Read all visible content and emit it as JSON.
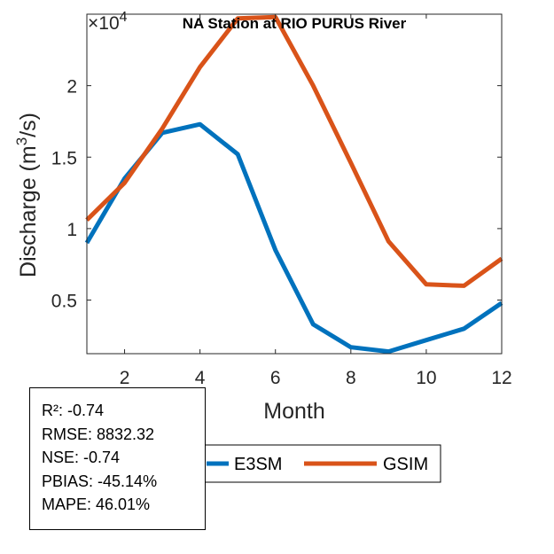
{
  "chart_data": {
    "type": "line",
    "title": "NA  Station at  RIO PURUS  River",
    "xlabel": "Month",
    "ylabel_base": "Discharge (m",
    "ylabel_sup": "3",
    "ylabel_tail": "/s)",
    "y_exponent_base": "×10",
    "y_exponent_power": "4",
    "xlim": [
      1,
      12
    ],
    "ylim": [
      0.125,
      2.5
    ],
    "x_ticks": [
      2,
      4,
      6,
      8,
      10,
      12
    ],
    "x_tick_labels": [
      "2",
      "4",
      "6",
      "8",
      "10",
      "12"
    ],
    "y_ticks": [
      0.5,
      1,
      1.5,
      2
    ],
    "y_tick_labels": [
      "0.5",
      "1",
      "1.5",
      "2"
    ],
    "x": [
      1,
      2,
      3,
      4,
      5,
      6,
      7,
      8,
      9,
      10,
      11,
      12
    ],
    "series": [
      {
        "name": "E3SM",
        "color": "#0072BD",
        "values": [
          0.9,
          1.35,
          1.67,
          1.73,
          1.52,
          0.85,
          0.33,
          0.17,
          0.14,
          0.22,
          0.3,
          0.48
        ]
      },
      {
        "name": "GSIM",
        "color": "#D95319",
        "values": [
          1.06,
          1.32,
          1.7,
          2.13,
          2.47,
          2.48,
          2.0,
          1.46,
          0.91,
          0.61,
          0.6,
          0.79
        ]
      }
    ],
    "legend": {
      "placement": "bottom",
      "entries": [
        "E3SM",
        "GSIM"
      ]
    }
  },
  "stats": [
    "R²: -0.74",
    "RMSE: 8832.32",
    "NSE: -0.74",
    "PBIAS: -45.14%",
    "MAPE: 46.01%"
  ]
}
